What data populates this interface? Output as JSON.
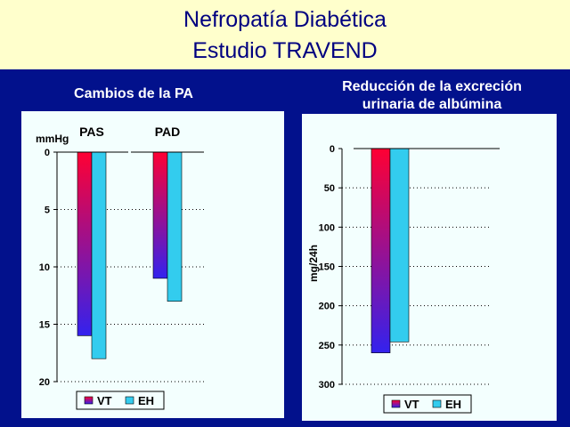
{
  "title": {
    "line1": "Nefropatía Diabética",
    "line2": "Estudio TRAVEND"
  },
  "colors": {
    "background": "#02118C",
    "title_band": "#FFFFCC",
    "title_text": "#000080",
    "panel": "#F3FFFE",
    "vt_top": "#FF0033",
    "vt_bottom": "#3322EE",
    "eh": "#33CCEE"
  },
  "chart_data": [
    {
      "type": "bar",
      "title": "Cambios de la PA",
      "ylabel": "mmHg",
      "categories": [
        "PAS",
        "PAD"
      ],
      "yticks": [
        "0",
        "5",
        "10",
        "15",
        "20"
      ],
      "ylim": [
        0,
        20
      ],
      "y_inverted": true,
      "grid": true,
      "legend_position": "bottom",
      "series": [
        {
          "name": "VT",
          "values": [
            16,
            11
          ]
        },
        {
          "name": "EH",
          "values": [
            18,
            13
          ]
        }
      ]
    },
    {
      "type": "bar",
      "title_line1": "Reducción de la excreción",
      "title_line2": "urinaria de albúmina",
      "ylabel": "mg/24h",
      "categories": [
        ""
      ],
      "yticks": [
        "0",
        "50",
        "100",
        "150",
        "200",
        "250",
        "300"
      ],
      "ylim": [
        0,
        300
      ],
      "y_inverted": true,
      "grid": true,
      "legend_position": "bottom",
      "series": [
        {
          "name": "VT",
          "values": [
            260
          ]
        },
        {
          "name": "EH",
          "values": [
            246
          ]
        }
      ]
    }
  ]
}
